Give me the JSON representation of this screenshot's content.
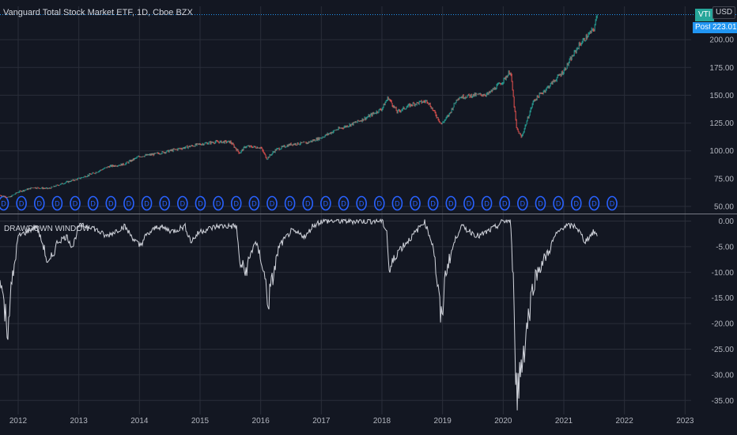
{
  "header": {
    "title": "Vanguard Total Stock Market ETF, 1D, Cboe BZX",
    "symbol_badge": "VTI",
    "currency_badge": "USD",
    "session_badge": "Post",
    "last_price": "223.01",
    "indicator_label": "DRAWDOWN WINDOW"
  },
  "colors": {
    "background": "#131722",
    "grid": "#2a2e39",
    "up": "#26a69a",
    "down": "#ef5350",
    "dividend_marker": "#2962ff",
    "drawdown_line": "#d1d4dc",
    "price_line": "#2196f3"
  },
  "chart_data": [
    {
      "type": "line",
      "x_axis": {
        "tick_labels": [
          "2012",
          "2013",
          "2014",
          "2015",
          "2016",
          "2017",
          "2018",
          "2019",
          "2020",
          "2021",
          "2022",
          "2023"
        ],
        "xlim": [
          2011.7,
          2023.1
        ]
      },
      "y_axis": {
        "tick_labels": [
          "50.00",
          "75.00",
          "100.00",
          "125.00",
          "150.00",
          "175.00",
          "200.00"
        ],
        "tick_values": [
          50,
          75,
          100,
          125,
          150,
          175,
          200
        ],
        "ylim": [
          45,
          230
        ]
      },
      "series": [
        {
          "x": [
            2011.7,
            2011.85,
            2012.0,
            2012.25,
            2012.5,
            2012.75,
            2013.0,
            2013.25,
            2013.5,
            2013.75,
            2014.0,
            2014.25,
            2014.5,
            2014.75,
            2015.0,
            2015.25,
            2015.5,
            2015.65,
            2015.75,
            2016.0,
            2016.1,
            2016.25,
            2016.5,
            2016.75,
            2017.0,
            2017.25,
            2017.5,
            2017.75,
            2018.0,
            2018.1,
            2018.25,
            2018.5,
            2018.75,
            2018.98,
            2019.1,
            2019.25,
            2019.5,
            2019.75,
            2020.0,
            2020.12,
            2020.22,
            2020.3,
            2020.5,
            2020.75,
            2021.0,
            2021.25,
            2021.5,
            2021.55
          ],
          "values": [
            60,
            58,
            63,
            67,
            66,
            71,
            75,
            80,
            86,
            88,
            95,
            97,
            100,
            103,
            106,
            108,
            108,
            98,
            104,
            103,
            93,
            101,
            106,
            107,
            112,
            119,
            124,
            130,
            138,
            148,
            135,
            142,
            145,
            124,
            132,
            148,
            150,
            151,
            163,
            172,
            120,
            112,
            145,
            158,
            172,
            195,
            210,
            223.01
          ]
        }
      ],
      "dividend_marker_label": "D",
      "dividend_marker_count": 35
    },
    {
      "type": "line",
      "title": "DRAWDOWN WINDOW",
      "y_axis": {
        "tick_labels": [
          "0.00",
          "-5.00",
          "-10.00",
          "-15.00",
          "-20.00",
          "-25.00",
          "-30.00",
          "-35.00"
        ],
        "tick_values": [
          0,
          -5,
          -10,
          -15,
          -20,
          -25,
          -30,
          -35
        ],
        "ylim": [
          -36.5,
          1
        ]
      },
      "series": [
        {
          "x": [
            2011.7,
            2011.75,
            2011.82,
            2011.9,
            2012.0,
            2012.15,
            2012.3,
            2012.42,
            2012.5,
            2012.65,
            2012.8,
            2012.9,
            2013.0,
            2013.2,
            2013.45,
            2013.6,
            2013.75,
            2014.0,
            2014.1,
            2014.3,
            2014.55,
            2014.75,
            2014.85,
            2015.0,
            2015.3,
            2015.6,
            2015.65,
            2015.75,
            2015.9,
            2016.0,
            2016.08,
            2016.12,
            2016.3,
            2016.5,
            2016.75,
            2016.85,
            2017.0,
            2017.5,
            2018.0,
            2018.08,
            2018.12,
            2018.25,
            2018.5,
            2018.7,
            2018.85,
            2018.98,
            2019.05,
            2019.2,
            2019.3,
            2019.45,
            2019.6,
            2019.75,
            2019.9,
            2020.0,
            2020.12,
            2020.18,
            2020.22,
            2020.3,
            2020.4,
            2020.5,
            2020.6,
            2020.75,
            2020.85,
            2021.0,
            2021.2,
            2021.35,
            2021.5,
            2021.55
          ],
          "values": [
            -10,
            -15,
            -21,
            -12,
            -3,
            -2,
            -1,
            -5,
            -9,
            -4,
            -3,
            -5,
            -1,
            -1,
            -3,
            -2,
            -1,
            -5,
            -3,
            -1,
            -2,
            -1,
            -4,
            -2,
            -1,
            -1,
            -8,
            -10,
            -4,
            -7,
            -12,
            -16,
            -5,
            -2,
            -3,
            -1,
            0,
            0,
            0,
            -2,
            -10,
            -6,
            -3,
            0,
            -5,
            -20,
            -10,
            -4,
            -1,
            -2,
            -3,
            -2,
            -1,
            0,
            0,
            -15,
            -34,
            -28,
            -20,
            -12,
            -9,
            -6,
            -3,
            -1,
            -1,
            -4,
            -2,
            -3
          ]
        }
      ]
    }
  ]
}
